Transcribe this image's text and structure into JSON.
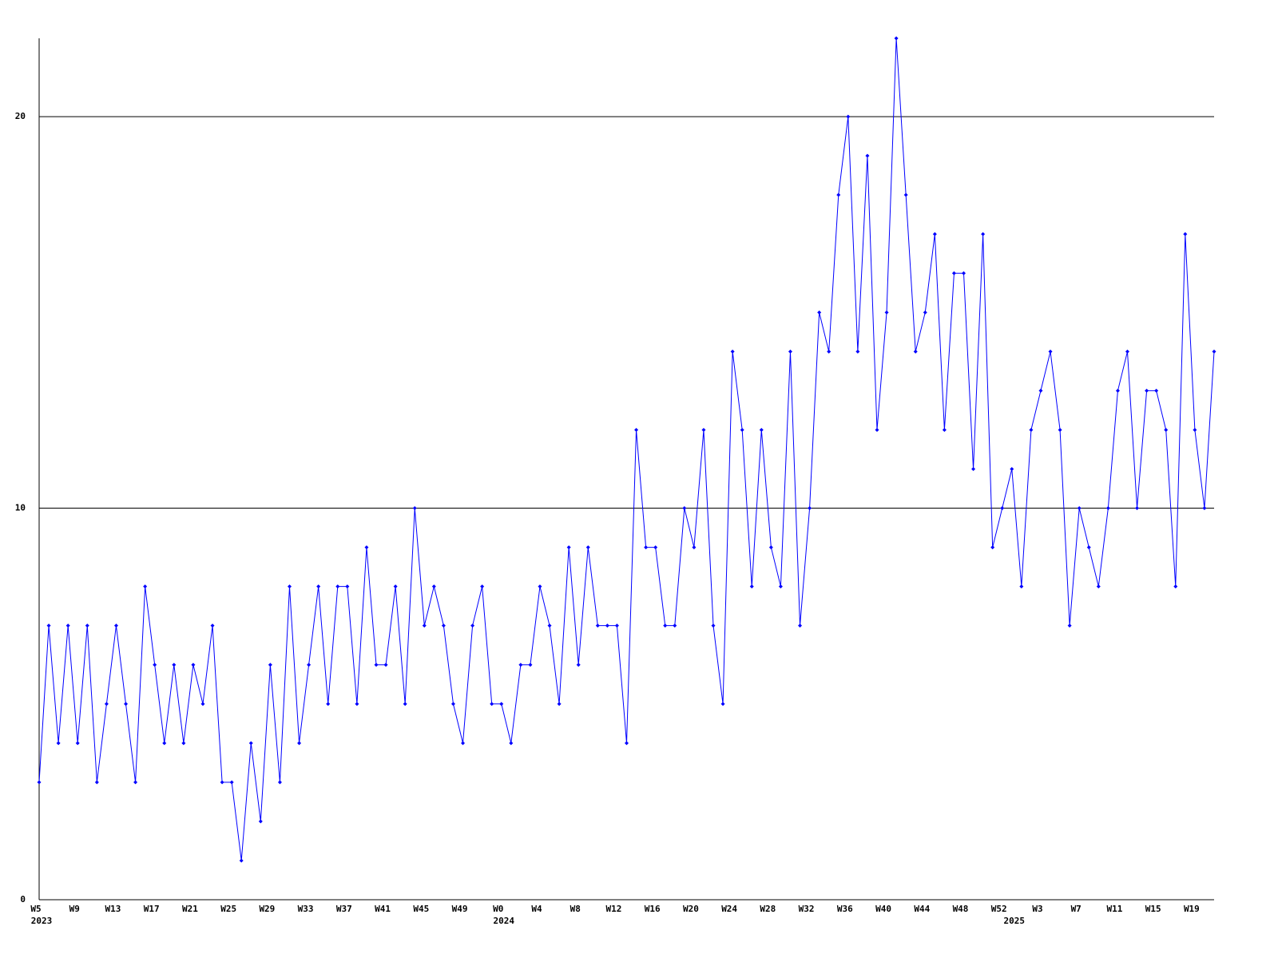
{
  "chart_data": {
    "type": "line",
    "categories": [
      "W5",
      null,
      null,
      null,
      "W9",
      null,
      null,
      null,
      "W13",
      null,
      null,
      null,
      "W17",
      null,
      null,
      null,
      "W21",
      null,
      null,
      null,
      "W25",
      null,
      null,
      null,
      "W29",
      null,
      null,
      null,
      "W33",
      null,
      null,
      null,
      "W37",
      null,
      null,
      null,
      "W41",
      null,
      null,
      null,
      "W45",
      null,
      null,
      null,
      "W49",
      null,
      null,
      null,
      "W0",
      null,
      null,
      null,
      "W4",
      null,
      null,
      null,
      "W8",
      null,
      null,
      null,
      "W12",
      null,
      null,
      null,
      "W16",
      null,
      null,
      null,
      "W20",
      null,
      null,
      null,
      "W24",
      null,
      null,
      null,
      "W28",
      null,
      null,
      null,
      "W32",
      null,
      null,
      null,
      "W36",
      null,
      null,
      null,
      "W40",
      null,
      null,
      null,
      "W44",
      null,
      null,
      null,
      "W48",
      null,
      null,
      null,
      "W52",
      null,
      null,
      null,
      "W3",
      null,
      null,
      null,
      "W7",
      null,
      null,
      null,
      "W11",
      null,
      null,
      null,
      "W15",
      null,
      null,
      null,
      "W19",
      null,
      null
    ],
    "x_groups": [
      {
        "label": "2023",
        "start": 0
      },
      {
        "label": "2024",
        "start": 48
      },
      {
        "label": "2025",
        "start": 101
      }
    ],
    "values": [
      3,
      7,
      4,
      7,
      4,
      7,
      3,
      5,
      7,
      5,
      3,
      8,
      6,
      4,
      6,
      4,
      6,
      5,
      7,
      3,
      3,
      1,
      4,
      2,
      6,
      3,
      8,
      4,
      6,
      8,
      5,
      8,
      8,
      5,
      9,
      6,
      6,
      8,
      5,
      10,
      7,
      8,
      7,
      5,
      4,
      7,
      8,
      5,
      5,
      4,
      6,
      6,
      8,
      7,
      5,
      9,
      6,
      9,
      7,
      7,
      7,
      4,
      12,
      9,
      9,
      7,
      7,
      10,
      9,
      12,
      7,
      5,
      14,
      12,
      8,
      12,
      9,
      8,
      14,
      7,
      10,
      15,
      14,
      18,
      20,
      14,
      19,
      12,
      15,
      22,
      18,
      14,
      15,
      17,
      12,
      16,
      16,
      11,
      17,
      9,
      10,
      11,
      8,
      12,
      13,
      14,
      12,
      7,
      10,
      9,
      8,
      10,
      13,
      14,
      10,
      13,
      13,
      12,
      8,
      17,
      12,
      10,
      14
    ],
    "color": "#0000ff",
    "ylim": [
      0,
      22
    ],
    "yticks": [
      0,
      10,
      20
    ],
    "grid": true
  }
}
